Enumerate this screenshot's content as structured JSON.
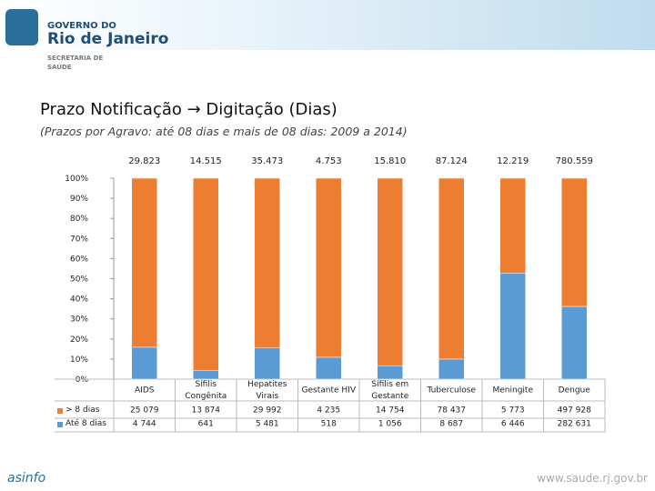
{
  "header": {
    "line1": "GOVERNO DO",
    "line2": "Rio de Janeiro",
    "line3": "SECRETARIA DE",
    "line4": "SAÚDE"
  },
  "footer": {
    "brand": "asinfo",
    "url": "www.saude.rj.gov.br"
  },
  "chart_data": {
    "type": "stacked_bar_100",
    "title": "Prazo Notificação → Digitação (Dias)",
    "subtitle": "(Prazos por Agravo: até 08 dias e mais de 08 dias: 2009 a 2014)",
    "categories": [
      "AIDS",
      "Sífilis Congênita",
      "Hepatites Virais",
      "Gestante HIV",
      "Sífilis em Gestante",
      "Tuberculose",
      "Meningite",
      "Dengue"
    ],
    "totals": [
      "29.823",
      "14.515",
      "35.473",
      "4.753",
      "15.810",
      "87.124",
      "12.219",
      "780.559"
    ],
    "series": [
      {
        "name": "> 8 dias",
        "color": "#ed7d31",
        "values": [
          84.1,
          95.6,
          84.5,
          89.1,
          93.3,
          90.0,
          47.2,
          63.8
        ],
        "counts": [
          "25 079",
          "13 874",
          "29 992",
          "4 235",
          "14 754",
          "78 437",
          "5 773",
          "497 928"
        ]
      },
      {
        "name": "Até 8 dias",
        "color": "#5b9bd5",
        "values": [
          15.9,
          4.4,
          15.5,
          10.9,
          6.7,
          10.0,
          52.8,
          36.2
        ],
        "counts": [
          "4 744",
          "641",
          "5 481",
          "518",
          "1 056",
          "8 687",
          "6 446",
          "282 631"
        ]
      }
    ],
    "ylim": [
      0,
      100
    ],
    "yticks": [
      {
        "value": 0,
        "label": "0%"
      },
      {
        "value": 10,
        "label": "10%"
      },
      {
        "value": 20,
        "label": "20%"
      },
      {
        "value": 30,
        "label": "30%"
      },
      {
        "value": 40,
        "label": "40%"
      },
      {
        "value": 50,
        "label": "50%"
      },
      {
        "value": 60,
        "label": "60%"
      },
      {
        "value": 70,
        "label": "70%"
      },
      {
        "value": 80,
        "label": "80%"
      },
      {
        "value": 90,
        "label": "90%"
      },
      {
        "value": 100,
        "label": "100%"
      }
    ]
  }
}
